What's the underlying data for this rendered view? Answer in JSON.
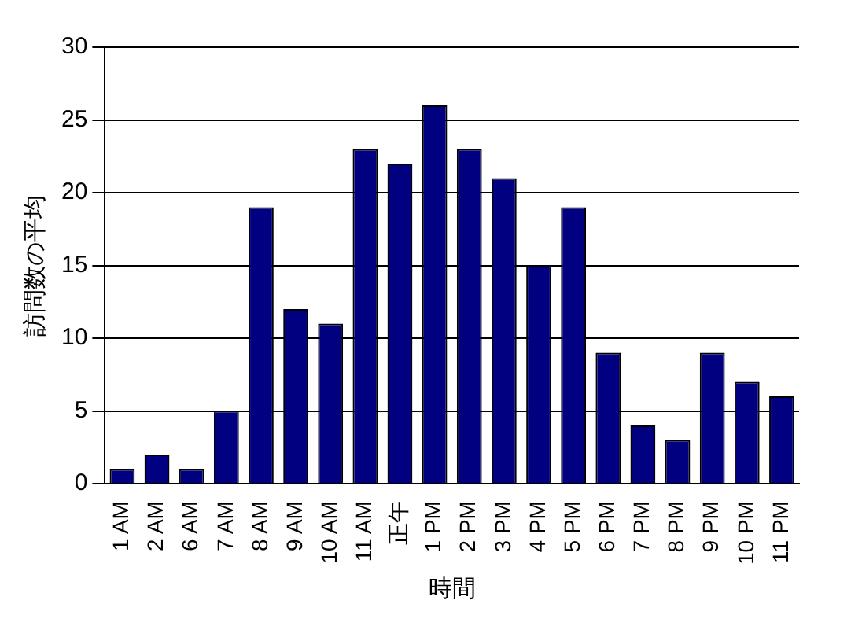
{
  "chart_data": {
    "type": "bar",
    "xlabel": "時間",
    "ylabel": "訪問数の平均",
    "categories": [
      "1 AM",
      "2 AM",
      "6 AM",
      "7 AM",
      "8 AM",
      "9 AM",
      "10 AM",
      "11 AM",
      "正午",
      "1 PM",
      "2 PM",
      "3 PM",
      "4 PM",
      "5 PM",
      "6 PM",
      "7 PM",
      "8 PM",
      "9 PM",
      "10 PM",
      "11 PM"
    ],
    "values": [
      1,
      2,
      1,
      5,
      19,
      12,
      11,
      23,
      22,
      26,
      23,
      21,
      15,
      19,
      9,
      4,
      3,
      9,
      7,
      6
    ],
    "color": "#000080",
    "ylim": [
      0,
      30
    ],
    "yticks": [
      0,
      5,
      10,
      15,
      20,
      25,
      30
    ],
    "grid": "y",
    "legend": false
  }
}
